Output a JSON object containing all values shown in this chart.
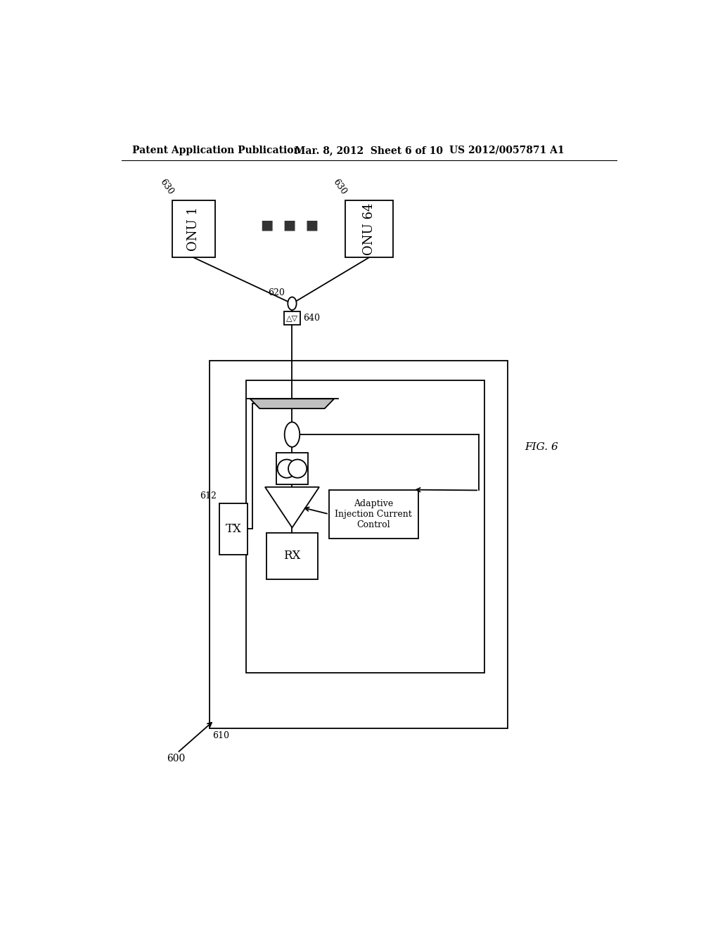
{
  "bg_color": "#ffffff",
  "header_left": "Patent Application Publication",
  "header_mid": "Mar. 8, 2012  Sheet 6 of 10",
  "header_right": "US 2012/0057871 A1",
  "fig_label": "FIG. 6",
  "label_600": "600",
  "label_610": "610",
  "label_612": "612",
  "label_620": "620",
  "label_630_left": "630",
  "label_630_right": "630",
  "label_640": "640",
  "onu1_text": "ONU 1",
  "onu64_text": "ONU 64",
  "tx_text": "TX",
  "rx_text": "RX",
  "adaptive_text": "Adaptive\nInjection Current\nControl",
  "dots": "■  ■  ■",
  "line_color": "#000000",
  "box_color": "#ffffff",
  "line_width": 1.3
}
